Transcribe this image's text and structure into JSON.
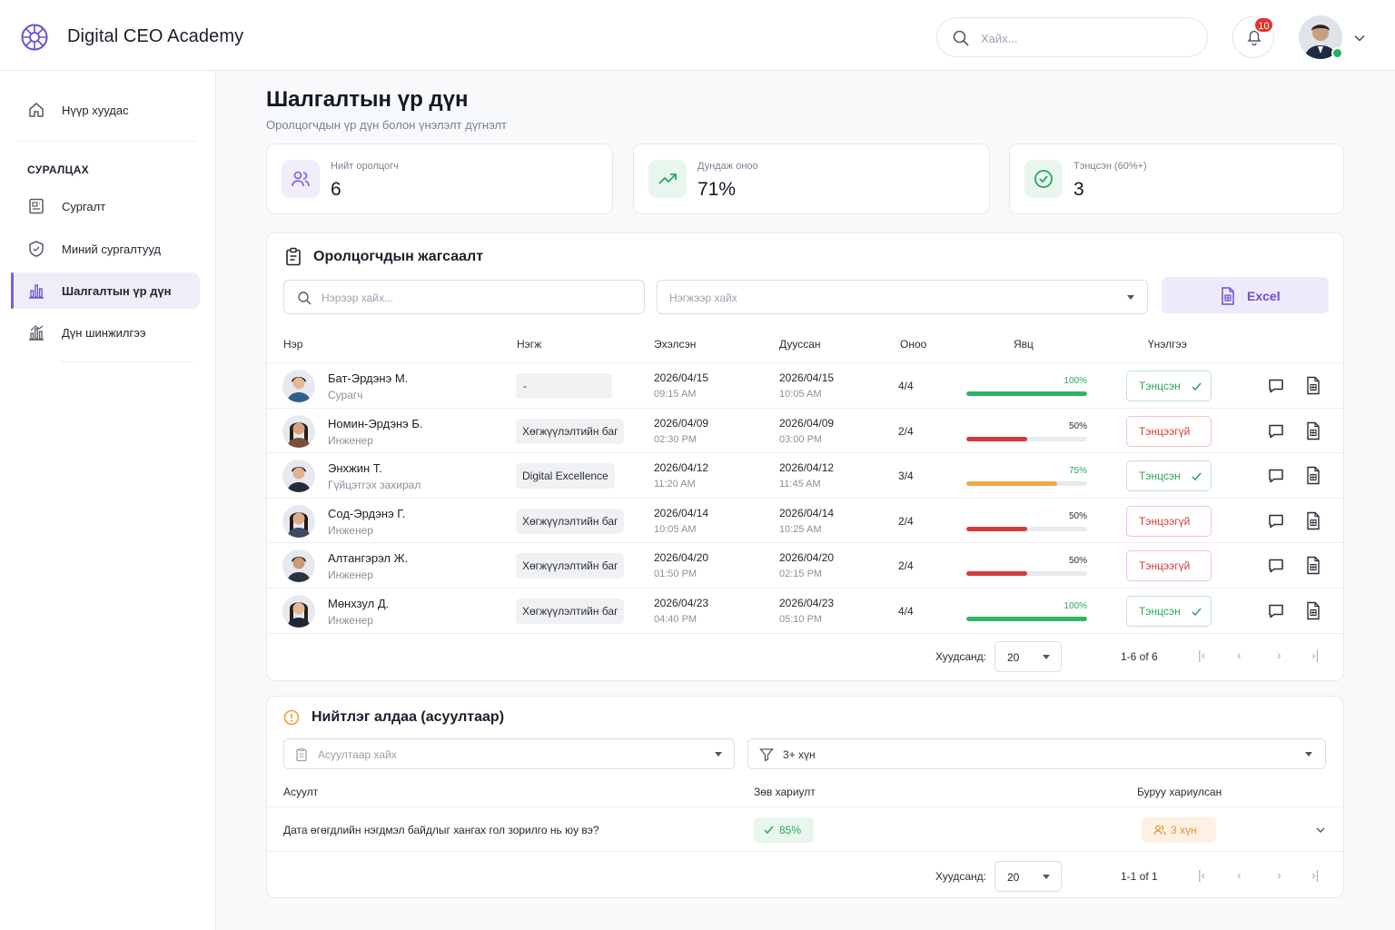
{
  "header": {
    "brand": "Digital CEO Academy",
    "search_placeholder": "Хайх...",
    "notification_count": "10"
  },
  "sidebar": {
    "home": "Нүүр хуудас",
    "section": "СУРАЛЦАХ",
    "items": [
      {
        "label": "Сургалт",
        "icon": "courses-icon"
      },
      {
        "label": "Миний сургалтууд",
        "icon": "shield-icon"
      },
      {
        "label": "Шалгалтын үр дүн",
        "icon": "bar-chart-icon",
        "active": true
      },
      {
        "label": "Дүн шинжилгээ",
        "icon": "analytics-icon"
      }
    ]
  },
  "page": {
    "title": "Шалгалтын үр дүн",
    "subtitle": "Оролцогчдын үр дүн болон үнэлэлт дүгнэлт"
  },
  "stats": [
    {
      "label": "Нийт оролцогч",
      "value": "6",
      "color": "#7b5ce0"
    },
    {
      "label": "Дундаж оноо",
      "value": "71%",
      "color": "#27a85a"
    },
    {
      "label": "Тэнцсэн (60%+)",
      "value": "3",
      "color": "#27a85a"
    }
  ],
  "participants": {
    "title": "Оролцогчдын жагсаалт",
    "name_search_placeholder": "Нэрээр хайх...",
    "unit_search_placeholder": "Нэгжээр хайх",
    "excel_label": "Excel",
    "columns": [
      "Нэр",
      "Нэгж",
      "Эхэлсэн",
      "Дууссан",
      "Оноо",
      "Явц",
      "Үнэлгээ"
    ],
    "rows": [
      {
        "name": "Бат-Эрдэнэ М.",
        "role": "Сурагч",
        "team": "-",
        "start_date": "2026/04/15",
        "start_time": "09:15 AM",
        "end_date": "2026/04/15",
        "end_time": "10:05 AM",
        "score": "4/4",
        "progress_label": "100%",
        "progress": 100,
        "bar_color": "#2fb565",
        "status": "Тэнцсэн",
        "passed": true
      },
      {
        "name": "Номин-Эрдэнэ Б.",
        "role": "Инженер",
        "team": "Хөгжүүлэлтийн баг",
        "start_date": "2026/04/09",
        "start_time": "02:30 PM",
        "end_date": "2026/04/09",
        "end_time": "03:00 PM",
        "score": "2/4",
        "progress_label": "50%",
        "progress": 50,
        "bar_color": "#d63a3a",
        "status": "Тэнцээгүй",
        "passed": false
      },
      {
        "name": "Энхжин Т.",
        "role": "Гүйцэтгэх захирал",
        "team": "Digital Excellence",
        "start_date": "2026/04/12",
        "start_time": "11:20 AM",
        "end_date": "2026/04/12",
        "end_time": "11:45 AM",
        "score": "3/4",
        "progress_label": "75%",
        "progress": 75,
        "bar_color": "#f5a742",
        "status": "Тэнцсэн",
        "passed": true
      },
      {
        "name": "Сод-Эрдэнэ Г.",
        "role": "Инженер",
        "team": "Хөгжүүлэлтийн баг",
        "start_date": "2026/04/14",
        "start_time": "10:05 AM",
        "end_date": "2026/04/14",
        "end_time": "10:25 AM",
        "score": "2/4",
        "progress_label": "50%",
        "progress": 50,
        "bar_color": "#d63a3a",
        "status": "Тэнцээгүй",
        "passed": false
      },
      {
        "name": "Алтангэрэл Ж.",
        "role": "Инженер",
        "team": "Хөгжүүлэлтийн баг",
        "start_date": "2026/04/20",
        "start_time": "01:50 PM",
        "end_date": "2026/04/20",
        "end_time": "02:15 PM",
        "score": "2/4",
        "progress_label": "50%",
        "progress": 50,
        "bar_color": "#d63a3a",
        "status": "Тэнцээгүй",
        "passed": false
      },
      {
        "name": "Мөнхзул Д.",
        "role": "Инженер",
        "team": "Хөгжүүлэлтийн баг",
        "start_date": "2026/04/23",
        "start_time": "04:40 PM",
        "end_date": "2026/04/23",
        "end_time": "05:10 PM",
        "score": "4/4",
        "progress_label": "100%",
        "progress": 100,
        "bar_color": "#2fb565",
        "status": "Тэнцсэн",
        "passed": true
      }
    ],
    "pagination": {
      "per_page_label": "Хуудсанд:",
      "per_page": "20",
      "range": "1-6 of 6"
    }
  },
  "errors": {
    "title": "Нийтлэг алдаа (асуултаар)",
    "question_search_placeholder": "Асуултаар хайх",
    "filter_value": "3+ хүн",
    "columns": [
      "Асуулт",
      "Зөв хариулт",
      "Буруу хариулсан"
    ],
    "rows": [
      {
        "question": "Дата өгөгдлийн нэгдмэл байдлыг хангах гол зорилго нь юу вэ?",
        "correct": "85%",
        "wrong": "3 хүн"
      }
    ],
    "pagination": {
      "per_page_label": "Хуудсанд:",
      "per_page": "20",
      "range": "1-1 of 1"
    }
  },
  "colors": {
    "accent": "#7b5ce0",
    "pass": "#27a85a",
    "fail": "#d63a3a"
  }
}
